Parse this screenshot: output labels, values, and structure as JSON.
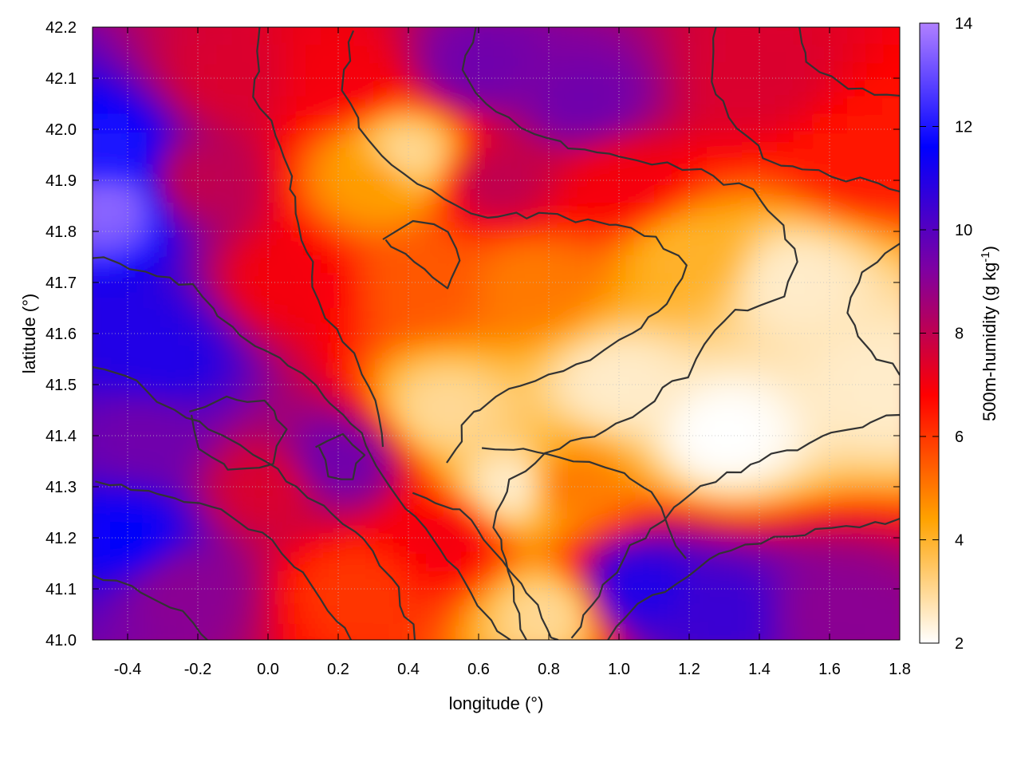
{
  "chart_data": {
    "type": "heatmap",
    "title": "",
    "xlabel": "longitude (°)",
    "ylabel": "latitude (°)",
    "colorbar_label_prefix": "500m-humidity (g kg",
    "colorbar_label_sup": "-1",
    "colorbar_label_suffix": ")",
    "xlim": [
      -0.5,
      1.8
    ],
    "ylim": [
      41.0,
      42.2
    ],
    "clim": [
      2,
      14
    ],
    "x_ticks": [
      "-0.4",
      "-0.2",
      "0.0",
      "0.2",
      "0.4",
      "0.6",
      "0.8",
      "1.0",
      "1.2",
      "1.4",
      "1.6",
      "1.8"
    ],
    "y_ticks": [
      "41.0",
      "41.1",
      "41.2",
      "41.3",
      "41.4",
      "41.5",
      "41.6",
      "41.7",
      "41.8",
      "41.9",
      "42.0",
      "42.1",
      "42.2"
    ],
    "colorbar_ticks": [
      "2",
      "4",
      "6",
      "8",
      "10",
      "12",
      "14"
    ],
    "grid": true,
    "colormap": [
      "#ffffff",
      "#ffa200",
      "#ff0000",
      "#8000a0",
      "#0000ff",
      "#b080ff"
    ],
    "contour_color": "#333333",
    "field_samples": [
      {
        "lon": -0.45,
        "lat": 41.85,
        "value": 13.5
      },
      {
        "lon": -0.45,
        "lat": 41.95,
        "value": 12.0
      },
      {
        "lon": -0.4,
        "lat": 41.6,
        "value": 11.0
      },
      {
        "lon": -0.4,
        "lat": 41.2,
        "value": 11.5
      },
      {
        "lon": -0.35,
        "lat": 41.4,
        "value": 9.5
      },
      {
        "lon": -0.3,
        "lat": 41.55,
        "value": 11.0
      },
      {
        "lon": -0.25,
        "lat": 41.1,
        "value": 9.0
      },
      {
        "lon": -0.2,
        "lat": 41.9,
        "value": 8.0
      },
      {
        "lon": -0.1,
        "lat": 42.1,
        "value": 7.5
      },
      {
        "lon": 0.0,
        "lat": 41.3,
        "value": 7.5
      },
      {
        "lon": 0.05,
        "lat": 41.7,
        "value": 7.0
      },
      {
        "lon": 0.2,
        "lat": 41.35,
        "value": 9.5
      },
      {
        "lon": 0.2,
        "lat": 42.1,
        "value": 7.0
      },
      {
        "lon": 0.25,
        "lat": 41.1,
        "value": 6.0
      },
      {
        "lon": 0.3,
        "lat": 41.9,
        "value": 4.5
      },
      {
        "lon": 0.4,
        "lat": 41.95,
        "value": 3.0
      },
      {
        "lon": 0.45,
        "lat": 41.7,
        "value": 5.5
      },
      {
        "lon": 0.5,
        "lat": 41.45,
        "value": 3.0
      },
      {
        "lon": 0.5,
        "lat": 41.2,
        "value": 7.0
      },
      {
        "lon": 0.6,
        "lat": 42.12,
        "value": 9.5
      },
      {
        "lon": 0.65,
        "lat": 41.9,
        "value": 8.0
      },
      {
        "lon": 0.7,
        "lat": 41.3,
        "value": 2.5
      },
      {
        "lon": 0.75,
        "lat": 41.7,
        "value": 5.0
      },
      {
        "lon": 0.8,
        "lat": 41.05,
        "value": 3.0
      },
      {
        "lon": 0.85,
        "lat": 41.3,
        "value": 5.0
      },
      {
        "lon": 0.9,
        "lat": 42.05,
        "value": 9.5
      },
      {
        "lon": 1.0,
        "lat": 41.5,
        "value": 2.5
      },
      {
        "lon": 1.0,
        "lat": 41.9,
        "value": 7.0
      },
      {
        "lon": 1.05,
        "lat": 41.1,
        "value": 11.0
      },
      {
        "lon": 1.2,
        "lat": 41.75,
        "value": 4.0
      },
      {
        "lon": 1.3,
        "lat": 41.05,
        "value": 10.5
      },
      {
        "lon": 1.3,
        "lat": 41.4,
        "value": 2.0
      },
      {
        "lon": 1.4,
        "lat": 42.1,
        "value": 7.5
      },
      {
        "lon": 1.5,
        "lat": 41.7,
        "value": 2.5
      },
      {
        "lon": 1.6,
        "lat": 41.05,
        "value": 9.0
      },
      {
        "lon": 1.7,
        "lat": 41.95,
        "value": 6.5
      },
      {
        "lon": 1.75,
        "lat": 41.5,
        "value": 2.5
      }
    ]
  }
}
